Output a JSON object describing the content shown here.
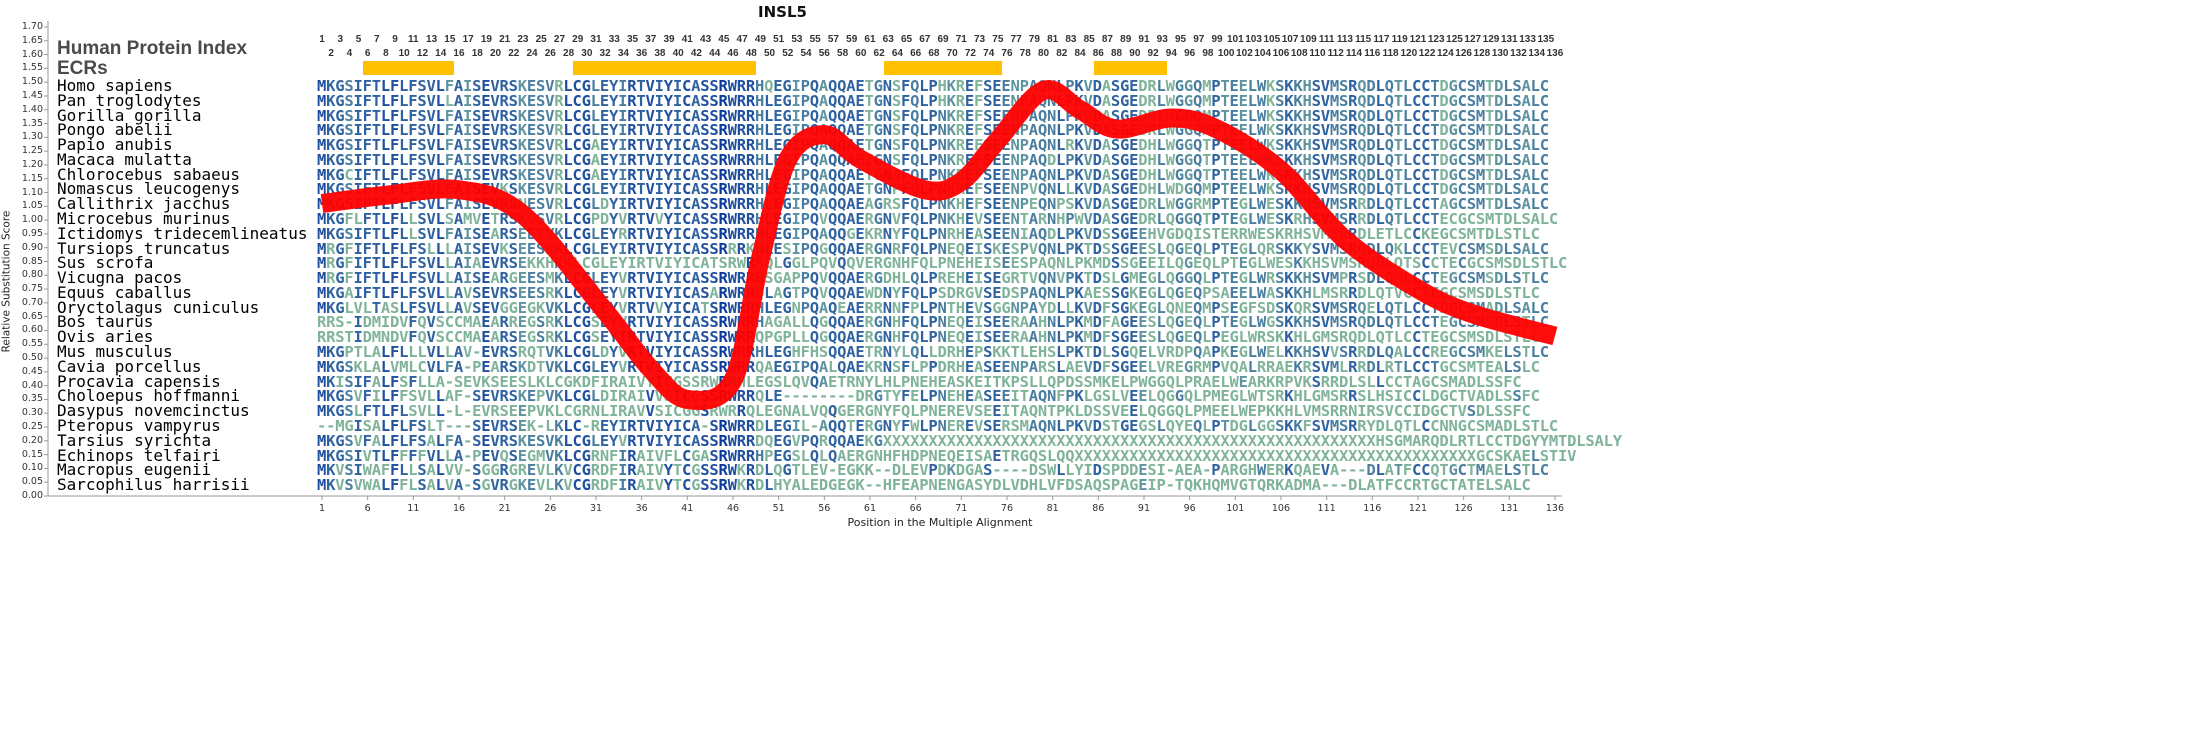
{
  "title": "INSL5",
  "header": {
    "index_label": "Human Protein Index",
    "ecr_label": "ECRs"
  },
  "colors": {
    "curve": "#ff0000",
    "ecr": "#FFC000",
    "conserved": "#0b3a9c",
    "variable": "#7fb39a"
  },
  "chart_data": {
    "type": "line",
    "title": "INSL5",
    "xlabel": "Position in the Multiple Alignment",
    "ylabel": "Relative Substitution Score",
    "xlim": [
      1,
      136
    ],
    "ylim": [
      0,
      1.7
    ],
    "yticks": [
      "0.00",
      "0.05",
      "0.10",
      "0.15",
      "0.20",
      "0.25",
      "0.30",
      "0.35",
      "0.40",
      "0.45",
      "0.50",
      "0.55",
      "0.60",
      "0.65",
      "0.70",
      "0.75",
      "0.80",
      "0.85",
      "0.90",
      "0.95",
      "1.00",
      "1.05",
      "1.10",
      "1.15",
      "1.20",
      "1.25",
      "1.30",
      "1.35",
      "1.40",
      "1.45",
      "1.50",
      "1.55",
      "1.60",
      "1.65",
      "1.70"
    ],
    "xticks": [
      "1",
      "6",
      "11",
      "16",
      "21",
      "26",
      "31",
      "36",
      "41",
      "46",
      "51",
      "56",
      "61",
      "66",
      "71",
      "76",
      "81",
      "86",
      "91",
      "96",
      "101",
      "106",
      "111",
      "116",
      "121",
      "126",
      "131",
      "136"
    ],
    "series": [
      {
        "name": "Relative Substitution Score",
        "x": [
          1,
          8,
          16,
          23,
          32,
          37,
          41,
          46,
          49,
          52,
          56,
          60,
          67,
          71,
          75,
          80,
          84,
          88,
          94,
          99,
          106,
          113,
          121,
          127,
          136
        ],
        "y": [
          1.06,
          1.09,
          1.11,
          1.02,
          0.67,
          0.46,
          0.35,
          0.42,
          0.86,
          1.22,
          1.31,
          1.22,
          1.11,
          1.14,
          1.29,
          1.47,
          1.4,
          1.33,
          1.37,
          1.33,
          1.18,
          0.93,
          0.75,
          0.66,
          0.58
        ]
      }
    ],
    "ecrs": [
      [
        6,
        15
      ],
      [
        29,
        48
      ],
      [
        63,
        75
      ],
      [
        86,
        93
      ]
    ],
    "species": [
      {
        "name": "Homo sapiens",
        "seq": "MKGSIFTLFLFSVLFAISEVRSKESVRLCGLEYIRTVIYICASSRWRRHQEGIPQAQQAETGNSFQLPHKREFSEENPAQNLPKVDASGEDRLWGGQMPTEELWKSKKHSVMSRQDLQTLCCTDGCSMTDLSALC"
      },
      {
        "name": "Pan troglodytes",
        "seq": "MKGSIFTLFLFSVLLAISEVRSKESVRLCGLEYIRTVIYICASSRWRRHLEGIPQAQQAETGNSFQLPHKREFSEENPAQNLPKVDASGEDRLWGGQMPTEELWKSKKHSVMSRQDLQTLCCTDGCSMTDLSALC"
      },
      {
        "name": "Gorilla gorilla",
        "seq": "MKGSIFTLFLFSVLFAISEVRSKESVRLCGLEYIRTVIYICASSRWRRHLEGIPQAQQAETGNSFQLPNKREFSEENPAQNLPKVDASGEDRLWGGQMPTEELWKSKKHSVMSRQDLQTLCCTDGCSMTDLSALC"
      },
      {
        "name": "Pongo abelii",
        "seq": "MKGSIFTLFLFSVLFAISEVRSKESVRLCGLEYIRTVIYICASSRWRRHLEGIPQAQQAETGNSFQLPNKREFSEENPAQNLPKVDASGEDRLWGGQMPTEELWKSKKHSVMSRQDLQTLCCTDGCSMTDLSALC"
      },
      {
        "name": "Papio anubis",
        "seq": "MKGSIFTLFLFSVLFAISEVRSKESVRLCGAEYIRTVIYICASSRWRRHLEGIPQAQQAETGNSFQLPNKREFSEENPAQNLRKVDASGEDHLWGGQTPTEELWKSKKHSVMSRQDLQTLCCTDGCSMTDLSALC"
      },
      {
        "name": "Macaca mulatta",
        "seq": "MKGSIFTLFLFSVLFAISEVRSKESVRLCGAEYIRTVIYICASSRWRRHLEGIPQAQQAEIGNSFQLPNKREFSEENPAQDLPKVDASGEDHLWGGQTPTEELWKSKKHSVMSRQDLQTLCCTDGCSMTDLSALC"
      },
      {
        "name": "Chlorocebus sabaeus",
        "seq": "MKGCIFTLFLFSVLFAISEVRSKESVRLCGAEYIRTVIYICASSRWRRHLEGIPQAQQAETGNAFQLPNKREFSEENPAQNLPKVDASGEDHLWGGQTPTEELWKSKKHSVMSRQDLQTLCCTDGCSMTDLSALC"
      },
      {
        "name": "Nomascus leucogenys",
        "seq": "MKGSIFTLFLFSVLFAISEVKSKESVRLCGLEYIRTVIYICASSRWRRHLEGIPQAQQAETGNPFQLPNKREFSEENPVQNLLKVDASGEDHLWDGQMPTEELWKSKKHSVMSRQDLQTLCCTDGCSMTDLSALC"
      },
      {
        "name": "Callithrix jacchus",
        "seq": "MKGSIFTLFLFSVLFAISEVRSNESVRLCGLDYIRTVIYICASSRWRRHLEGIPQAQQAEAGRSFQLPNKHEFSEENPEQNPSKVDASGEDRLWGGRMPTEGLWESKKHSVMSRRDLQTLCCTAGCSMTDLSALC"
      },
      {
        "name": "Microcebus murinus",
        "seq": "MKGFLFTLFLLSVLSAMVETRSKGSVRLCGPDYVRTVVYICASSRWRRHLEGIPQVQQAERGNVFQLPNKHEVSEENTARNHPWVDASGEDRLQGGQTPTEGLWESKRHSVMSRRDLQTLCCTECGCSMTDLSALC"
      },
      {
        "name": "Ictidomys tridecemlineatus",
        "seq": "MKGSIFTLFLLSVLFAISEARSEEIVKLCGLEYRRTVIYICASSRWRRHLEGIPQAQQGEKRNYFQLPNRHEASEENIAQDLPKVDSSGEEHVGDQISTERRWESKRHSVMSRRDLETLCCKEGCSMTDLSTLC"
      },
      {
        "name": "Tursiops truncatus",
        "seq": "MRGFIFTLFLFSLLLAISEVKSEESRKLCGLEYIRTVIYICASSRRRKHLESIPQGQQAERGNRFQLPNEQEISKESPVQNLPKTDSSGEESLQGEQLPTEGLQRSKKYSVMSRQDLQKLCCTEVCSMSDLSALC"
      },
      {
        "name": "Sus scrofa",
        "seq": "MRGFIFTLFLFSVLLAIAEVRSEKKHKKLCGLEYIRTVIYICATSRWRRQLGGLPQVQQVERGNHFQLPNEHEISEESPAQNLPKMDSSGEEILQGEQLPTEGLWESKKHSVMSRQDLQTSCCTECGCSMSDLSTLC"
      },
      {
        "name": "Vicugna pacos",
        "seq": "MRGFIFTLFLFSVLLAISEARGEESMKLCGLEYVRTVIYICASSRWRRHSGAPPQVQQAERGDHLQLPREHEISEGRTVQNVPKTDSLGMEGLQGGQLPTEGLWRSKKHSVMPRSDLQMLCCTEGCSMSDLSTLC"
      },
      {
        "name": "Equus caballus",
        "seq": "MKGAIFTLFLFSVLLAVSEVRSEESRKLCGLEYVRTVIYICASARWRRQLAGTPQVQQAEWDNYFQLPSDRGVSEDSPAQNLPKAESSGKEGLQGEQPSAEELWASKKHLMSRRDLQTVCCTEGCSMSDLSTLC"
      },
      {
        "name": "Oryctolagus cuniculus",
        "seq": "MKGLVLTASLFSVLLAVSEVGGEGKVKLCGLEYVRTVVYICATSRWRRHLEGNPQAQEAERRNNFPLPNTHEVSGGNPAYDLLKVDFSGKEGLQNEQMPSEGFSDSKQRSVMSRQELQTLCCTDGCSMADLSALC"
      },
      {
        "name": "Bos taurus",
        "seq": "RRS-IDMIDVFQVSCCMAEARREGSRKLCGSEYVRTVIYICASSRWRRHAGALLQGQQAERGNHFQLPNEQEISEERAAHNLPKMDFAGEESLQGEQLPTEGLWGSKKHSVMSRQDLQTLCCTEGCSMSDLSTLC"
      },
      {
        "name": "Ovis aries",
        "seq": "RRSTIDMNDVFQVSCCMAEARSEGSRKLCGSEYIRTVIYICASSRWRRQPGPLLQGQQAERGNHFQLPNEQEISEERAAHNLPKMDFSGEESLQGEQLPEGLWRSKKHLGMSRQDLQTLCCTEGCSMSDLSTLC"
      },
      {
        "name": "Mus musculus",
        "seq": "MKGPTLALFLLLVLLAV-EVRSRQTVKLCGLDYVRTVIYICASSRWRRHLEGHFHSQQAETRNYLQLLDRHEPSKKTLEHSLPKTDLSGQELVRDPQAPKEGLWELKKHSVVSRRDLQALCCREGCSMKELSTLC"
      },
      {
        "name": "Cavia porcellus",
        "seq": "MKGSKLALVMLCVLFA-PEARSKDTVKLCGLEYVRTVIYICASSRWRRQAEGIPQALQAEKRNSFLPPDRHEASEENPARSLAEVDFSGEELVREGRMPVQALRRAEKRSVMLRRDLRTLCCTGCSMTEALSLC"
      },
      {
        "name": "Procavia capensis",
        "seq": "MKISIFALFSFLLA-SEVKSEESLKLCGKDFIRAIVYICGSSRWRRHLEGSLQVQAETRNYLHLPNEHEASKEITKPSLLQPDSSMKELPWGGQLPRAELWEARKRPVKSRRDLSLLCCTAGCSMADLSSFC"
      },
      {
        "name": "Choloepus hoffmanni",
        "seq": "MKGSVFILFFSVLLAF-SEVRSKEPVKLCGLDIRAIVVSICGSSRWRRQLE--------DRGTYFELPNEHEASEEITAQNFPKLGSLVEELQGGQLPMEGLWTSRKHLGMSRRSLHSICCLDGCTVADLSSFC"
      },
      {
        "name": "Dasypus novemcinctus",
        "seq": "MKGSLFTLFLSVLL-L-EVRSEEPVKLCGRNLIRAVVSICGGSRWRRQLEGNALVQQGERGNYFQLPNEREVSEEITAQNTPKLDSSVEELQGGQLPMEELWEPKKHLVMSRRNIRSVCCIDGCTVSDLSSFC"
      },
      {
        "name": "Pteropus vampyrus",
        "seq": "--MGISALFLFSLT---SEVRSEK-LKLC-REYIRTVIYICA-SRWRRDLEGIL-AQQTERGNYFWLPNEREVSERSMAQNLPKVDSTGEGSLQYEQLPTDGLGGSKKFSVMSRRYDLQTLCCNNGCSMADLSTLC"
      },
      {
        "name": "Tarsius syrichta",
        "seq": "MKGSVFALFLFSALFA-SEVRSKESVKLCGLEYVRTVIYICASSRWRRDQEGVPQRQQAEKGXXXXXXXXXXXXXXXXXXXXXXXXXXXXXXXXXXXXXXXXXXXXXXXXXXXXXXHSGMARQDLRTLCCTDGYYMTDLSALY"
      },
      {
        "name": "Echinops telfairi",
        "seq": "MKGSIVTLFFFFVLLA-PEVQSEGMVKLCGRNFIRAIVFLCGASRWRRHPEGSLQLQAERGNHFHDPNEQEISAETRGQSLQQXXXXXXXXXXXXXXXXXXXXXXXXXXXXXXXXXXXXXXXXXXXXGCSKAELSTIV"
      },
      {
        "name": "Macropus eugenii",
        "seq": "MKVSIWAFFLLSALVV-SGGRGREVLKVCGRDFIRAIVYTCGSSRWKRDLQGTLEV-EGKK--DLEVPDKDGAS----DSWLLYIDSPDDESI-AEA-PARGHWERKQAEVA---DLATFCCQTGCTMAELSTLC"
      },
      {
        "name": "Sarcophilus harrisii",
        "seq": "MKVSVWALFFLSALVA-SGVRGKEVLKVCGRDFIRAIVYTCGSSRWKRDLHYALEDGEGK--HFEAPNENGASYDLVDHLVFDSAQSPAGEIP-TQKHQMVGTQRKADMA---DLATFCCRTGCTATELSALC"
      }
    ]
  }
}
